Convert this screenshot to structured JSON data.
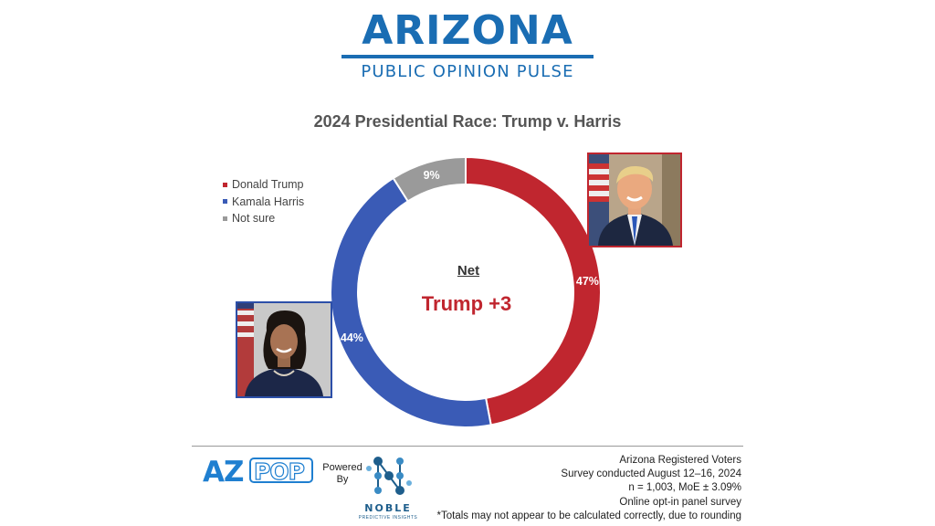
{
  "brand": {
    "title": "ARIZONA",
    "subtitle": "PUBLIC OPINION PULSE"
  },
  "chart_data": {
    "type": "pie",
    "variant": "donut",
    "title": "2024 Presidential Race: Trump v. Harris",
    "categories": [
      "Donald Trump",
      "Kamala Harris",
      "Not sure"
    ],
    "values": [
      47,
      44,
      9
    ],
    "value_labels": [
      "47%",
      "44%",
      "9%"
    ],
    "colors": [
      "#c0262f",
      "#3a5bb6",
      "#9a9a9a"
    ],
    "legend_position": "top-left",
    "center_label": "Net",
    "center_value": "Trump +3"
  },
  "footer": {
    "powered_by": "Powered By",
    "noble_name": "NOBLE",
    "noble_tagline": "PREDICTIVE INSIGHTS",
    "azpop_text": "AZPOP",
    "notes": [
      "Arizona Registered Voters",
      "Survey conducted August 12–16, 2024",
      "n = 1,003, MoE ± 3.09%",
      "Online opt-in panel survey",
      "*Totals may not appear to be calculated correctly, due to rounding"
    ]
  }
}
